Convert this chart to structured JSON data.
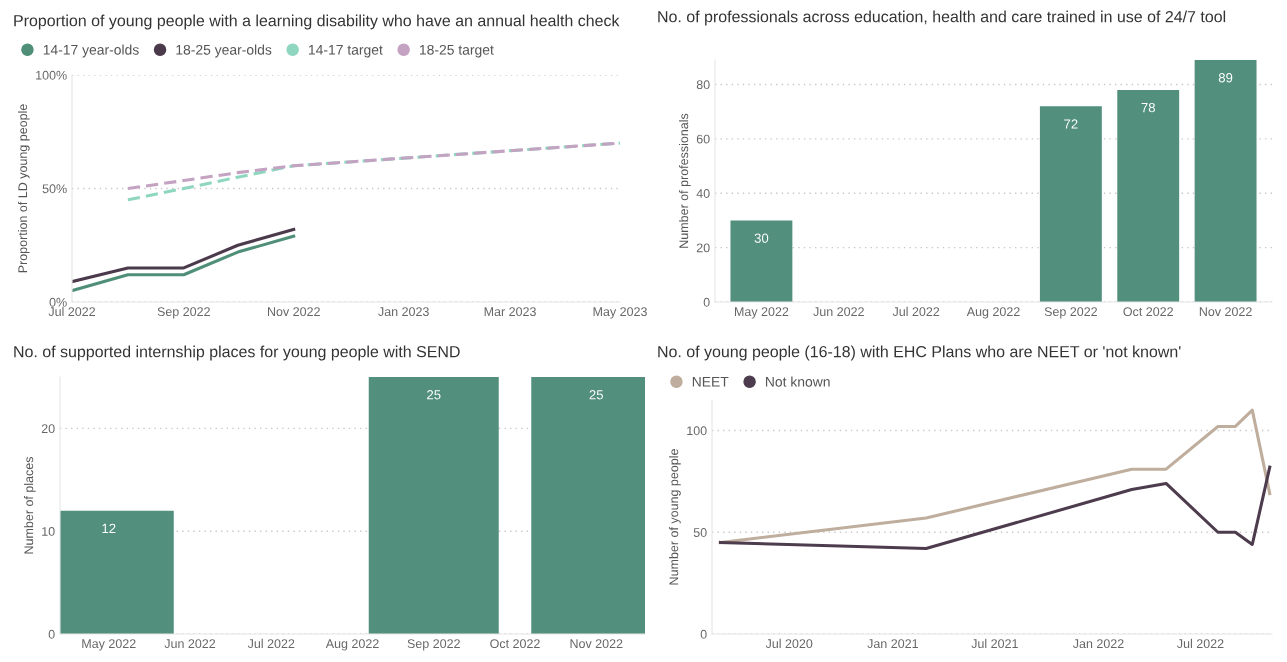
{
  "chart_data": [
    {
      "type": "line",
      "title": "Proportion of young people with a learning disability who have an annual health check",
      "ylabel": "Proportion of LD young people",
      "legend": "top left",
      "grid": "y",
      "marker": "none",
      "xlim": [
        "2022-07-01",
        "2023-05-01"
      ],
      "xticks": [
        {
          "value": "2022-07-01",
          "label": "Jul 2022"
        },
        {
          "value": "2022-09-01",
          "label": "Sep 2022"
        },
        {
          "value": "2022-11-01",
          "label": "Nov 2022"
        },
        {
          "value": "2023-01-01",
          "label": "Jan 2023"
        },
        {
          "value": "2023-03-01",
          "label": "Mar 2023"
        },
        {
          "value": "2023-05-01",
          "label": "May 2023"
        }
      ],
      "ylim": [
        0,
        100
      ],
      "yticks": [
        {
          "value": 0,
          "label": "0%"
        },
        {
          "value": 50,
          "label": "50%"
        },
        {
          "value": 100,
          "label": "100%"
        }
      ],
      "series": [
        {
          "name": "14-17 year-olds",
          "color": "#4f8f78",
          "x": [
            "2022-07-01",
            "2022-08-01",
            "2022-09-01",
            "2022-10-01",
            "2022-11-01"
          ],
          "values": [
            5,
            12,
            12,
            22,
            29
          ]
        },
        {
          "name": "18-25 year-olds",
          "color": "#4b3a4b",
          "x": [
            "2022-07-01",
            "2022-08-01",
            "2022-09-01",
            "2022-10-01",
            "2022-11-01"
          ],
          "values": [
            9,
            15,
            15,
            25,
            32
          ]
        },
        {
          "name": "14-17 target",
          "color": "#8ed6bf",
          "line_style": "dashed",
          "x": [
            "2022-08-01",
            "2022-09-01",
            "2022-10-01",
            "2022-11-01",
            "2023-05-01"
          ],
          "values": [
            45,
            50,
            55,
            60,
            70
          ]
        },
        {
          "name": "18-25 target",
          "color": "#c4a2c2",
          "line_style": "dashed",
          "x": [
            "2022-08-01",
            "2022-09-01",
            "2022-10-01",
            "2022-11-01",
            "2023-05-01"
          ],
          "values": [
            50,
            53.5,
            57,
            60,
            70
          ]
        }
      ]
    },
    {
      "type": "bar",
      "title": "No. of professionals across education, health and care trained in use of 24/7 tool",
      "ylabel": "Number of professionals",
      "grid": "y",
      "data_labels": true,
      "categories": [
        "May 2022",
        "Jun 2022",
        "Jul 2022",
        "Aug 2022",
        "Sep 2022",
        "Oct 2022",
        "Nov 2022"
      ],
      "values": [
        30,
        null,
        null,
        null,
        72,
        78,
        89
      ],
      "color": "#528f7c",
      "ylim": [
        0,
        89
      ],
      "yticks": [
        0,
        20,
        40,
        60,
        80
      ]
    },
    {
      "type": "bar",
      "title": "No. of supported internship places for young people with SEND",
      "ylabel": "Number of places",
      "grid": "y",
      "data_labels": true,
      "categories": [
        "May 2022",
        "Jun 2022",
        "Jul 2022",
        "Aug 2022",
        "Sep 2022",
        "Oct 2022",
        "Nov 2022"
      ],
      "values": [
        12,
        null,
        null,
        null,
        25,
        null,
        25
      ],
      "color": "#528f7c",
      "ylim": [
        0,
        25
      ],
      "yticks": [
        0,
        10,
        20
      ]
    },
    {
      "type": "line",
      "title": "No. of young people (16-18) with EHC Plans who are NEET or 'not known'",
      "ylabel": "Number of young people",
      "legend": "top left",
      "grid": "y",
      "marker": "none",
      "xlim": [
        "2020-02-15",
        "2022-11-05"
      ],
      "xticks": [
        {
          "value": "2020-07-01",
          "label": "Jul 2020"
        },
        {
          "value": "2021-01-01",
          "label": "Jan 2021"
        },
        {
          "value": "2021-07-01",
          "label": "Jul 2021"
        },
        {
          "value": "2022-01-01",
          "label": "Jan 2022"
        },
        {
          "value": "2022-07-01",
          "label": "Jul 2022"
        }
      ],
      "ylim": [
        0,
        115
      ],
      "yticks": [
        0,
        50,
        100
      ],
      "series": [
        {
          "name": "NEET",
          "color": "#bfae9d",
          "x": [
            "2020-03-01",
            "2021-03-01",
            "2022-03-01",
            "2022-05-01",
            "2022-08-01",
            "2022-09-01",
            "2022-10-01",
            "2022-11-01"
          ],
          "values": [
            45,
            57,
            81,
            81,
            102,
            102,
            110,
            69
          ]
        },
        {
          "name": "Not known",
          "color": "#4d3c4e",
          "x": [
            "2020-03-01",
            "2021-03-01",
            "2022-03-01",
            "2022-05-01",
            "2022-08-01",
            "2022-09-01",
            "2022-10-01",
            "2022-11-01"
          ],
          "values": [
            45,
            42,
            71,
            74,
            50,
            50,
            44,
            82
          ]
        }
      ]
    }
  ]
}
